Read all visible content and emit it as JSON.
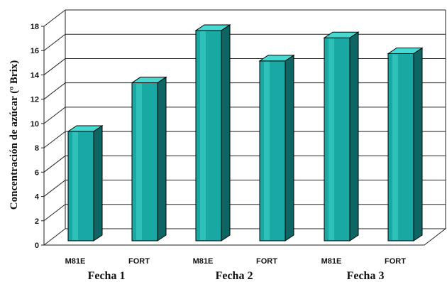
{
  "chart_data": {
    "type": "bar",
    "style": "3d-cylinder-bars",
    "ylabel": "Concentración de azúcar (º Brix)",
    "xlabel": "",
    "ylim": [
      0,
      18
    ],
    "yticks": [
      0,
      2,
      4,
      6,
      8,
      10,
      12,
      14,
      16,
      18
    ],
    "grid": true,
    "categories": [
      "M81E",
      "FORT",
      "M81E",
      "FORT",
      "M81E",
      "FORT"
    ],
    "groups": [
      "Fecha 1",
      "Fecha 2",
      "Fecha 3"
    ],
    "values": [
      9.0,
      13.0,
      17.3,
      14.8,
      16.7,
      15.4
    ],
    "colors": {
      "bar_front": "#1aa8a4",
      "bar_side": "#0d6664",
      "bar_top": "#48d8d2",
      "grid": "#222222",
      "back_wall": "#ffffff"
    }
  }
}
